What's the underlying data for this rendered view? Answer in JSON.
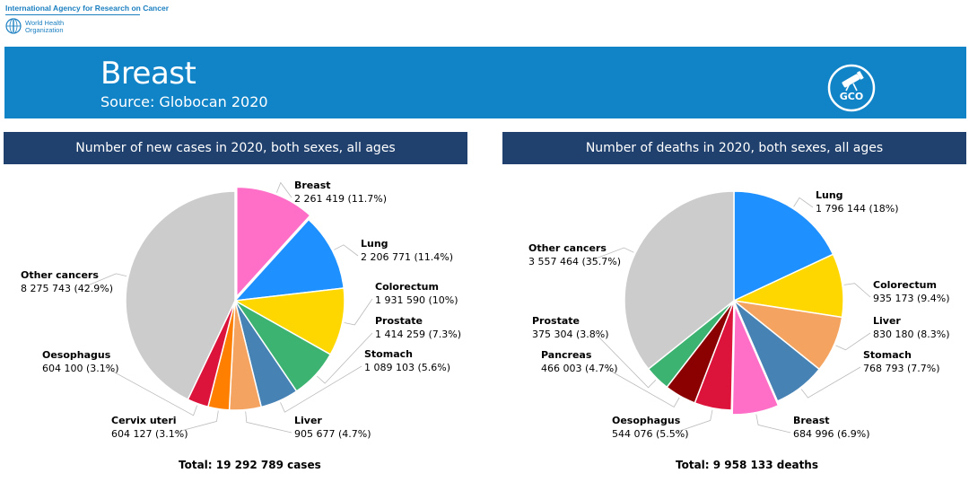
{
  "header": {
    "iarc_name": "International Agency for Research on Cancer",
    "who_line1": "World Health",
    "who_line2": "Organization",
    "title": "Breast",
    "source": "Source: Globocan 2020",
    "gco_label": "GCO"
  },
  "colors": {
    "banner": "#1184c8",
    "panel_header": "#20416e"
  },
  "chart_data": [
    {
      "type": "pie",
      "title": "Number of new cases in 2020, both sexes, all ages",
      "total_label": "Total: 19 292 789 cases",
      "exploded": "Breast",
      "slices": [
        {
          "name": "Breast",
          "value": 2261419,
          "value_label": "2 261 419 (11.7%)",
          "color": "#ff6ec7"
        },
        {
          "name": "Lung",
          "value": 2206771,
          "value_label": "2 206 771 (11.4%)",
          "color": "#1e90ff"
        },
        {
          "name": "Colorectum",
          "value": 1931590,
          "value_label": "1 931 590 (10%)",
          "color": "#ffd700"
        },
        {
          "name": "Prostate",
          "value": 1414259,
          "value_label": "1 414 259 (7.3%)",
          "color": "#3cb371"
        },
        {
          "name": "Stomach",
          "value": 1089103,
          "value_label": "1 089 103 (5.6%)",
          "color": "#4682b4"
        },
        {
          "name": "Liver",
          "value": 905677,
          "value_label": "905 677 (4.7%)",
          "color": "#f4a460"
        },
        {
          "name": "Cervix uteri",
          "value": 604127,
          "value_label": "604 127 (3.1%)",
          "color": "#ff7f00"
        },
        {
          "name": "Oesophagus",
          "value": 604100,
          "value_label": "604 100 (3.1%)",
          "color": "#dc143c"
        },
        {
          "name": "Other cancers",
          "value": 8275743,
          "value_label": "8 275 743 (42.9%)",
          "color": "#cccccc"
        }
      ]
    },
    {
      "type": "pie",
      "title": "Number of deaths in 2020, both sexes, all ages",
      "total_label": "Total: 9 958 133 deaths",
      "exploded": "Breast",
      "slices": [
        {
          "name": "Lung",
          "value": 1796144,
          "value_label": "1 796 144 (18%)",
          "color": "#1e90ff"
        },
        {
          "name": "Colorectum",
          "value": 935173,
          "value_label": "935 173 (9.4%)",
          "color": "#ffd700"
        },
        {
          "name": "Liver",
          "value": 830180,
          "value_label": "830 180 (8.3%)",
          "color": "#f4a460"
        },
        {
          "name": "Stomach",
          "value": 768793,
          "value_label": "768 793 (7.7%)",
          "color": "#4682b4"
        },
        {
          "name": "Breast",
          "value": 684996,
          "value_label": "684 996 (6.9%)",
          "color": "#ff6ec7"
        },
        {
          "name": "Oesophagus",
          "value": 544076,
          "value_label": "544 076 (5.5%)",
          "color": "#dc143c"
        },
        {
          "name": "Pancreas",
          "value": 466003,
          "value_label": "466 003 (4.7%)",
          "color": "#8b0000"
        },
        {
          "name": "Prostate",
          "value": 375304,
          "value_label": "375 304 (3.8%)",
          "color": "#3cb371"
        },
        {
          "name": "Other cancers",
          "value": 3557464,
          "value_label": "3 557 464 (35.7%)",
          "color": "#cccccc"
        }
      ]
    }
  ]
}
